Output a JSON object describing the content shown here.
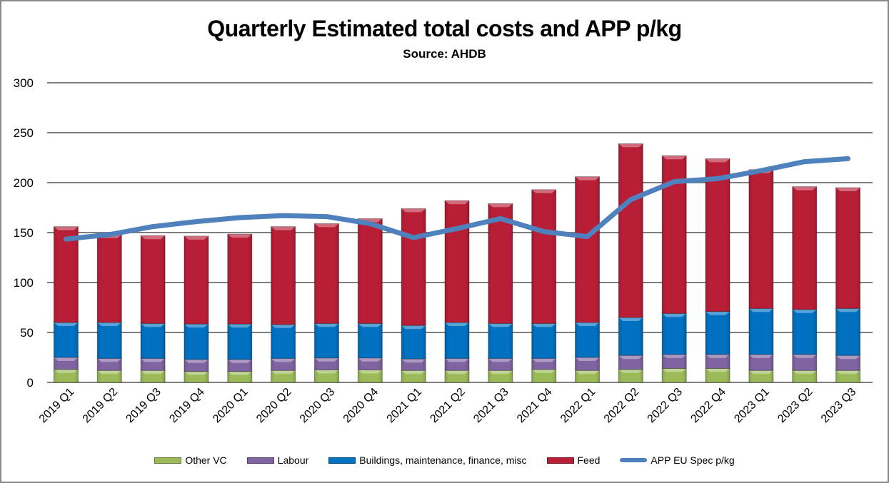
{
  "chart_data": {
    "type": "bar",
    "stacked": true,
    "title": "Quarterly Estimated total costs and APP p/kg",
    "subtitle": "Source: AHDB",
    "xlabel": "",
    "ylabel": "",
    "ylim": [
      0,
      300
    ],
    "yticks": [
      0,
      50,
      100,
      150,
      200,
      250,
      300
    ],
    "grid": true,
    "legend_position": "bottom",
    "categories": [
      "2019 Q1",
      "2019 Q2",
      "2019 Q3",
      "2019 Q4",
      "2020 Q1",
      "2020 Q2",
      "2020 Q3",
      "2020 Q4",
      "2021 Q1",
      "2021 Q2",
      "2021 Q3",
      "2021 Q4",
      "2022 Q1",
      "2022 Q2",
      "2022 Q3",
      "2022 Q4",
      "2023 Q1",
      "2023 Q2",
      "2023 Q3"
    ],
    "series": [
      {
        "name": "Other VC",
        "type": "bar",
        "color": "#9bbb59",
        "values": [
          13,
          12,
          12,
          11,
          11,
          12,
          12.5,
          12.5,
          12,
          12,
          12,
          13,
          12,
          13,
          14,
          14,
          12,
          12,
          12
        ]
      },
      {
        "name": "Labour",
        "type": "bar",
        "color": "#8064a2",
        "values": [
          12,
          12,
          12,
          12,
          12,
          12,
          12,
          12,
          11.5,
          12,
          12,
          11,
          13,
          14,
          14,
          14,
          16,
          16,
          15
        ]
      },
      {
        "name": "Buildings, maintenance, finance, misc",
        "type": "bar",
        "color": "#0070c0",
        "values": [
          35,
          36,
          35,
          35.5,
          35.5,
          34,
          34.5,
          34.5,
          33.5,
          36,
          35,
          35,
          35,
          38,
          41,
          43,
          46,
          45,
          47
        ]
      },
      {
        "name": "Feed",
        "type": "bar",
        "color": "#b91e37",
        "values": [
          96,
          88,
          88,
          88,
          90,
          98,
          100,
          105,
          117,
          122,
          120,
          134,
          146,
          174,
          158,
          153,
          139,
          123,
          121
        ]
      },
      {
        "name": "APP EU Spec p/kg",
        "type": "line",
        "color": "#4f81bd",
        "values": [
          143.5,
          148,
          156,
          161,
          165,
          167,
          166,
          159,
          145,
          154,
          164,
          151,
          146,
          183,
          201,
          204,
          212,
          221,
          224
        ]
      }
    ]
  }
}
